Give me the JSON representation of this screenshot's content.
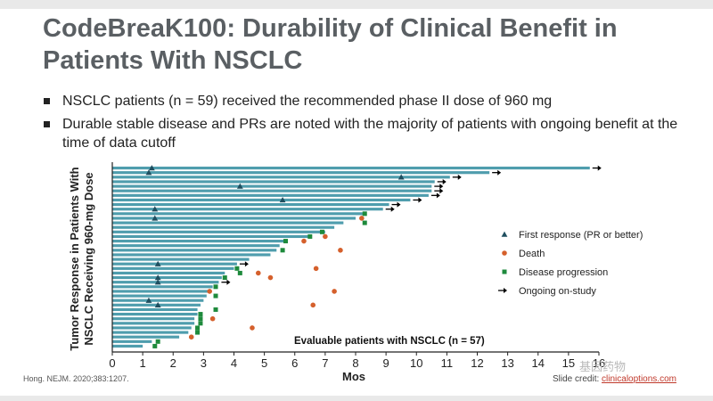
{
  "slide": {
    "title": "CodeBreaK100: Durability of Clinical Benefit in Patients With NSCLC",
    "bullets": [
      "NSCLC patients (n = 59) received the recommended phase II dose of 960 mg",
      "Durable stable disease and PRs are noted with the majority of patients with ongoing benefit at the time of data cutoff"
    ],
    "citation": "Hong. NEJM. 2020;383:1207.",
    "credit_label": "Slide credit:",
    "credit_link": "clinicaloptions.com",
    "watermark": "基因药物"
  },
  "colors": {
    "bar": "#4f9dad",
    "response": "#1f4e5f",
    "death": "#d5602c",
    "progression": "#1e8a3c",
    "axis": "#222222",
    "title": "#5a5f63"
  },
  "chart_data": {
    "type": "swimmer",
    "ylabel": "Tumor Response in Patients With NSCLC Receiving 960-mg Dose",
    "xlabel": "Mos",
    "xlim": [
      0,
      16
    ],
    "xticks": [
      0,
      1,
      2,
      3,
      4,
      5,
      6,
      7,
      8,
      9,
      10,
      11,
      12,
      13,
      14,
      15,
      16
    ],
    "annotation": "Evaluable patients with NSCLC (n = 57)",
    "legend": [
      {
        "key": "response",
        "label": "First response (PR or better)"
      },
      {
        "key": "death",
        "label": "Death"
      },
      {
        "key": "progression",
        "label": "Disease progression"
      },
      {
        "key": "ongoing",
        "label": "Ongoing on-study"
      }
    ],
    "patients": [
      {
        "duration": 15.7,
        "response": 1.3,
        "ongoing": true
      },
      {
        "duration": 12.4,
        "response": 1.2,
        "ongoing": true
      },
      {
        "duration": 11.1,
        "response": 9.5,
        "ongoing": true
      },
      {
        "duration": 10.6,
        "ongoing": true
      },
      {
        "duration": 10.5,
        "response": 4.2,
        "ongoing": true
      },
      {
        "duration": 10.5,
        "ongoing": true
      },
      {
        "duration": 10.4,
        "ongoing": true
      },
      {
        "duration": 9.8,
        "response": 5.6,
        "ongoing": true
      },
      {
        "duration": 9.1,
        "ongoing": true
      },
      {
        "duration": 8.9,
        "response": 1.4,
        "ongoing": true
      },
      {
        "duration": 8.3,
        "progression": 8.3
      },
      {
        "duration": 8.0,
        "response": 1.4,
        "death": 8.2
      },
      {
        "duration": 7.6,
        "progression": 8.3
      },
      {
        "duration": 7.3
      },
      {
        "duration": 7.0,
        "progression": 6.9
      },
      {
        "duration": 6.5,
        "progression": 6.5,
        "death": 7.0
      },
      {
        "duration": 5.7,
        "progression": 5.7,
        "death": 6.3
      },
      {
        "duration": 5.5
      },
      {
        "duration": 5.4,
        "progression": 5.6,
        "death": 7.5
      },
      {
        "duration": 5.2
      },
      {
        "duration": 4.5
      },
      {
        "duration": 4.1,
        "response": 1.5,
        "ongoing": true
      },
      {
        "duration": 4.0,
        "progression": 4.1,
        "death": 6.7
      },
      {
        "duration": 3.7,
        "progression": 4.2,
        "death": 4.8
      },
      {
        "duration": 3.6,
        "response": 1.5,
        "progression": 3.7,
        "death": 5.2
      },
      {
        "duration": 3.5,
        "response": 1.5,
        "ongoing": true
      },
      {
        "duration": 3.3,
        "progression": 3.4
      },
      {
        "duration": 3.2,
        "death": 3.2,
        "death2": 7.3
      },
      {
        "duration": 3.1,
        "progression": 3.4
      },
      {
        "duration": 3.0,
        "response": 1.2
      },
      {
        "duration": 2.9,
        "response": 1.5,
        "death": 6.6
      },
      {
        "duration": 2.8,
        "progression": 3.4
      },
      {
        "duration": 2.8,
        "progression": 2.9
      },
      {
        "duration": 2.7,
        "progression": 2.9,
        "death": 3.3
      },
      {
        "duration": 2.7,
        "progression": 2.9
      },
      {
        "duration": 2.6,
        "progression": 2.8,
        "death": 4.6
      },
      {
        "duration": 2.5,
        "progression": 2.8
      },
      {
        "duration": 2.2,
        "death": 2.6
      },
      {
        "duration": 1.3,
        "progression": 1.5
      },
      {
        "duration": 1.0,
        "progression": 1.4
      }
    ]
  }
}
